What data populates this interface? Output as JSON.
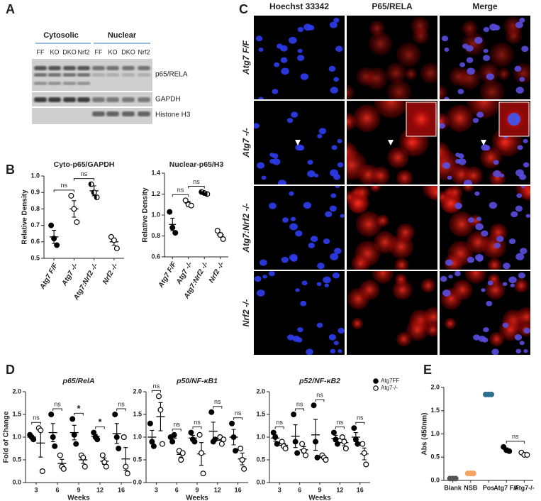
{
  "panel_labels": [
    "A",
    "B",
    "C",
    "D",
    "E"
  ],
  "blot": {
    "groups": [
      "Cytosolic",
      "Nuclear"
    ],
    "lanes": [
      "FF",
      "KO",
      "DKO",
      "Nrf2",
      "FF",
      "KO",
      "DKO",
      "Nrf2"
    ],
    "bands": [
      "p65/RELA",
      "GAPDH",
      "Histone H3"
    ]
  },
  "micrographs": {
    "columns": [
      "Hoechst 33342",
      "P65/RELA",
      "Merge"
    ],
    "rows": [
      "Atg7 F/F",
      "Atg7 -/-",
      "Atg7:Nrf2 -/-",
      "Nrf2 -/-"
    ]
  },
  "chart_data": [
    {
      "type": "dotplot",
      "title": "Cyto-p65/GAPDH",
      "ylabel": "Relative Density",
      "categories": [
        "Atg7 F/F",
        "Atg7 -/-",
        "Atg7:Nrf2 -/-",
        "Nrf2 -/-"
      ],
      "ylim": [
        0.5,
        1.0
      ],
      "yticks": [
        0.5,
        0.6,
        0.7,
        0.8,
        0.9,
        {
          "value": 1,
          "label": "1.0"
        }
      ],
      "series": [
        {
          "color": "#000000",
          "marker": [
            "solid",
            "open",
            "half",
            "open"
          ],
          "points": [
            [
              0.7,
              0.62,
              0.58
            ],
            [
              0.88,
              0.8,
              0.72
            ],
            [
              0.95,
              0.9,
              0.87
            ],
            [
              0.63,
              0.61,
              0.56
            ]
          ],
          "mean": [
            0.63,
            0.8,
            0.91,
            0.6
          ],
          "error": [
            0.04,
            0.05,
            0.03,
            0.02
          ]
        }
      ],
      "significance": [
        "ns",
        "ns",
        null,
        null
      ],
      "significance_span": "next"
    },
    {
      "type": "dotplot",
      "title": "Nuclear-p65/H3",
      "ylabel": "Relative Density",
      "categories": [
        "Atg7 F/F",
        "Atg7 -/-",
        "Atg7:Nrf2 -/-",
        "Nrf2 -/-"
      ],
      "ylim": [
        0.6,
        1.4
      ],
      "yticks": [
        0.6,
        0.8,
        {
          "value": 1,
          "label": "1.0"
        },
        1.2,
        1.4
      ],
      "series": [
        {
          "color": "#000000",
          "marker": [
            "solid",
            "open",
            "half",
            "open"
          ],
          "points": [
            [
              1.03,
              0.88,
              0.83
            ],
            [
              1.14,
              1.1,
              1.09
            ],
            [
              1.22,
              1.21,
              1.2
            ],
            [
              0.85,
              0.81,
              0.77
            ]
          ],
          "mean": [
            0.91,
            1.11,
            1.21,
            0.81
          ],
          "error": [
            0.06,
            0.02,
            0.01,
            0.02
          ]
        }
      ],
      "significance": [
        "ns",
        "ns",
        null,
        null
      ],
      "significance_span": "next"
    },
    {
      "type": "dotplot",
      "title": "p65/RelA",
      "ylabel": "Fold of Change",
      "xlabel": "Weeks",
      "categories": [
        "3",
        "6",
        "9",
        "12",
        "16"
      ],
      "ylim": [
        0,
        2
      ],
      "yticks": [
        {
          "value": 0,
          "label": "0.0"
        },
        0.5,
        {
          "value": 1,
          "label": "1.0"
        },
        1.5,
        {
          "value": 2,
          "label": "2.0"
        }
      ],
      "series": [
        {
          "color": "#000000",
          "marker": "solid",
          "points": [
            [
              1.05,
              1.0,
              0.95
            ],
            [
              1.5,
              1.0,
              0.8
            ],
            [
              1.4,
              1.05,
              0.85
            ],
            [
              1.1,
              1.0,
              0.95
            ],
            [
              1.5,
              1.0,
              0.75
            ]
          ],
          "mean": [
            1.0,
            1.1,
            1.1,
            1.02,
            1.08
          ],
          "error": [
            0.03,
            0.2,
            0.16,
            0.04,
            0.22
          ]
        },
        {
          "color": "#000000",
          "marker": "open",
          "points": [
            [
              1.2,
              1.15,
              0.25
            ],
            [
              0.6,
              0.35,
              0.3
            ],
            [
              0.6,
              0.55,
              0.35
            ],
            [
              0.6,
              0.45,
              0.35
            ],
            [
              1.0,
              0.35,
              0.2
            ]
          ],
          "mean": [
            0.87,
            0.42,
            0.5,
            0.47,
            0.52
          ],
          "error": [
            0.31,
            0.09,
            0.08,
            0.07,
            0.25
          ]
        }
      ],
      "significance": [
        "ns",
        "ns",
        "*",
        "*",
        "ns"
      ],
      "significance_span": "within"
    },
    {
      "type": "dotplot",
      "title": "p50/NF-κB1",
      "xlabel": "Weeks",
      "categories": [
        "3",
        "6",
        "9",
        "12",
        "16"
      ],
      "ylim": [
        0,
        2
      ],
      "yticks": [
        {
          "value": 0,
          "label": "0.0"
        },
        0.5,
        {
          "value": 1,
          "label": "1.0"
        },
        1.5,
        {
          "value": 2,
          "label": "2.0"
        }
      ],
      "series": [
        {
          "color": "#000000",
          "marker": "solid",
          "points": [
            [
              1.3,
              0.9,
              0.8
            ],
            [
              1.0,
              0.9,
              1.05
            ],
            [
              1.1,
              0.95,
              0.9
            ],
            [
              1.55,
              0.9,
              0.95
            ],
            [
              1.3,
              1.0,
              0.7
            ]
          ],
          "mean": [
            1.0,
            0.98,
            0.98,
            1.13,
            1.0
          ],
          "error": [
            0.15,
            0.04,
            0.06,
            0.2,
            0.17
          ]
        },
        {
          "color": "#000000",
          "marker": "open",
          "points": [
            [
              1.9,
              1.6,
              0.85
            ],
            [
              0.7,
              0.5,
              0.65
            ],
            [
              1.05,
              0.65,
              0.2
            ],
            [
              1.0,
              0.85,
              0.95
            ],
            [
              0.75,
              0.5,
              0.3
            ]
          ],
          "mean": [
            1.45,
            0.62,
            0.63,
            0.93,
            0.52
          ],
          "error": [
            0.31,
            0.06,
            0.25,
            0.04,
            0.13
          ]
        }
      ],
      "significance": [
        "ns",
        "ns",
        "ns",
        "ns",
        "ns"
      ],
      "significance_span": "within"
    },
    {
      "type": "dotplot",
      "title": "p52/NF-κB2",
      "xlabel": "Weeks",
      "categories": [
        "3",
        "6",
        "9",
        "12",
        "16"
      ],
      "ylim": [
        0,
        2
      ],
      "yticks": [
        {
          "value": 0,
          "label": "0.0"
        },
        0.5,
        {
          "value": 1,
          "label": "1.0"
        },
        1.5,
        {
          "value": 2,
          "label": "2.0"
        }
      ],
      "series": [
        {
          "name": "Atg7FF",
          "color": "#000000",
          "marker": "solid",
          "points": [
            [
              1.1,
              1.0,
              0.85
            ],
            [
              1.5,
              0.9,
              0.65
            ],
            [
              1.7,
              0.9,
              0.55
            ],
            [
              1.1,
              0.95,
              0.85
            ],
            [
              1.2,
              0.95,
              0.85
            ]
          ],
          "mean": [
            0.98,
            1.02,
            1.05,
            0.97,
            1.0
          ],
          "error": [
            0.07,
            0.25,
            0.34,
            0.07,
            0.1
          ]
        },
        {
          "name": "Atg7-/-",
          "color": "#000000",
          "marker": "open",
          "points": [
            [
              0.9,
              0.8,
              0.75
            ],
            [
              0.85,
              0.7,
              0.6
            ],
            [
              0.6,
              0.55,
              0.5
            ],
            [
              1.0,
              0.9,
              0.75
            ],
            [
              0.85,
              0.65,
              0.4
            ]
          ],
          "mean": [
            0.82,
            0.72,
            0.55,
            0.88,
            0.63
          ],
          "error": [
            0.04,
            0.07,
            0.03,
            0.07,
            0.13
          ]
        }
      ],
      "significance": [
        "ns",
        "ns",
        "ns",
        "ns",
        "ns"
      ],
      "significance_span": "within",
      "legend": "upper right"
    },
    {
      "type": "dotplot",
      "ylabel": "Abs (450nm)",
      "categories": [
        "Blank",
        "NSB",
        "Pos",
        "Atg7 F/F",
        "Atg7-/-"
      ],
      "ylim": [
        0,
        2
      ],
      "yticks": [
        {
          "value": 0,
          "label": "0.0"
        },
        0.5,
        {
          "value": 1,
          "label": "1.0"
        },
        1.5,
        {
          "value": 2,
          "label": "2.0"
        }
      ],
      "series": [
        {
          "color": [
            "#555555",
            "#f4a460",
            "#2e6e8e",
            "#000000",
            "#000000"
          ],
          "marker": [
            "solid",
            "solid",
            "solid",
            "solid",
            "open"
          ],
          "points": [
            [
              0.04,
              0.04,
              0.04
            ],
            [
              0.15,
              0.15,
              0.15
            ],
            [
              1.85,
              1.85,
              1.85
            ],
            [
              0.72,
              0.65,
              0.63
            ],
            [
              0.6,
              0.55,
              0.55
            ]
          ],
          "mean": [
            null,
            null,
            null,
            0.67,
            0.57
          ],
          "error": [
            null,
            null,
            null,
            0.03,
            0.02
          ]
        }
      ],
      "significance": [
        null,
        null,
        null,
        "ns",
        null
      ],
      "significance_span": "next"
    }
  ]
}
